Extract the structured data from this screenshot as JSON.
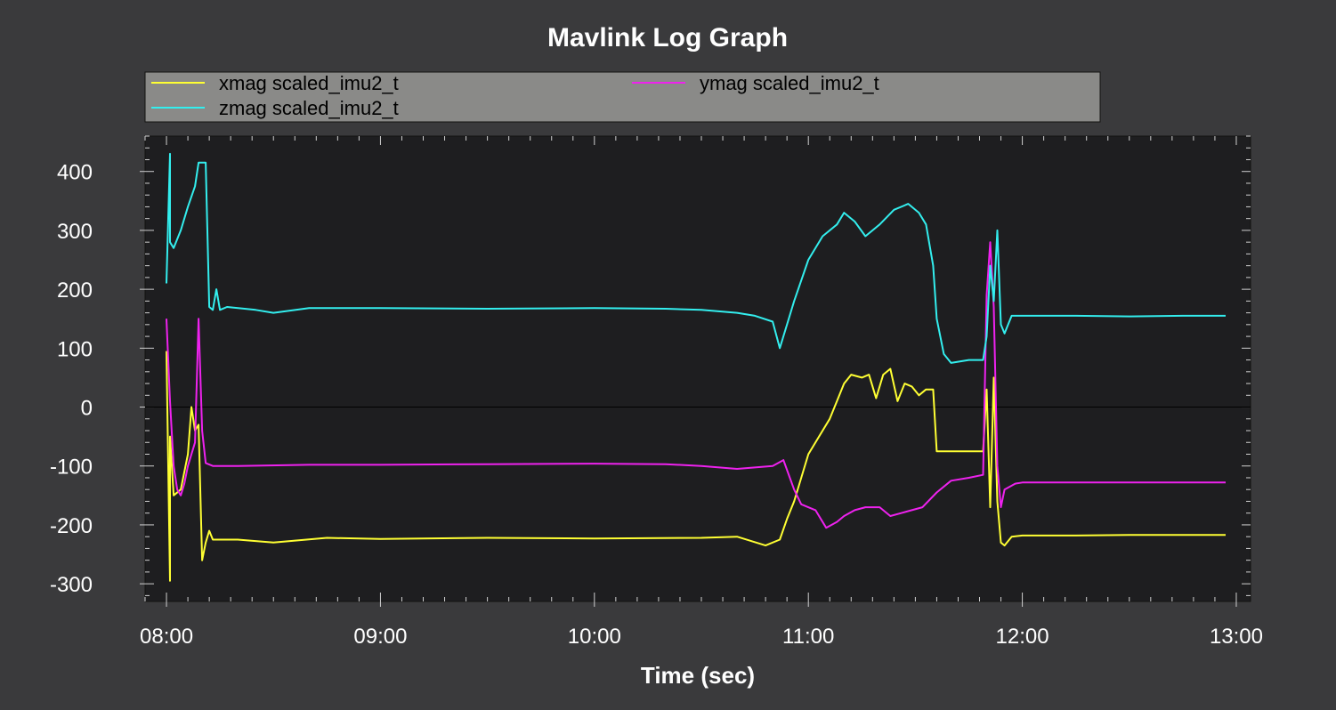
{
  "chart_data": {
    "type": "line",
    "title": "Mavlink Log Graph",
    "xlabel": "Time (sec)",
    "ylabel": "",
    "xlim": [
      "07:54",
      "13:04"
    ],
    "ylim": [
      -330,
      460
    ],
    "x_ticks": [
      "08:00",
      "09:00",
      "10:00",
      "11:00",
      "12:00",
      "13:00"
    ],
    "y_ticks": [
      400,
      300,
      200,
      100,
      0,
      -100,
      -200,
      -300
    ],
    "grid": false,
    "zero_line": true,
    "legend": "top",
    "background_color": "#3a3a3c",
    "plot_background": "#1e1e20",
    "legend_background": "#8a8a88",
    "series": [
      {
        "name": "xmag scaled_imu2_t",
        "color": "#ffff33",
        "points": [
          [
            "08:00",
            95
          ],
          [
            "08:01",
            -295
          ],
          [
            "08:01",
            -50
          ],
          [
            "08:02",
            -150
          ],
          [
            "08:04",
            -140
          ],
          [
            "08:05",
            -110
          ],
          [
            "08:06",
            -80
          ],
          [
            "08:07",
            0
          ],
          [
            "08:08",
            -40
          ],
          [
            "08:09",
            -30
          ],
          [
            "08:10",
            -260
          ],
          [
            "08:11",
            -230
          ],
          [
            "08:12",
            -210
          ],
          [
            "08:13",
            -225
          ],
          [
            "08:20",
            -225
          ],
          [
            "08:30",
            -230
          ],
          [
            "08:45",
            -222
          ],
          [
            "09:00",
            -224
          ],
          [
            "09:30",
            -222
          ],
          [
            "10:00",
            -223
          ],
          [
            "10:30",
            -222
          ],
          [
            "10:40",
            -220
          ],
          [
            "10:48",
            -235
          ],
          [
            "10:52",
            -225
          ],
          [
            "10:54",
            -190
          ],
          [
            "10:56",
            -160
          ],
          [
            "11:00",
            -80
          ],
          [
            "11:03",
            -50
          ],
          [
            "11:06",
            -20
          ],
          [
            "11:08",
            10
          ],
          [
            "11:10",
            40
          ],
          [
            "11:12",
            55
          ],
          [
            "11:15",
            50
          ],
          [
            "11:17",
            55
          ],
          [
            "11:19",
            15
          ],
          [
            "11:21",
            55
          ],
          [
            "11:23",
            65
          ],
          [
            "11:25",
            10
          ],
          [
            "11:27",
            40
          ],
          [
            "11:29",
            35
          ],
          [
            "11:31",
            20
          ],
          [
            "11:33",
            30
          ],
          [
            "11:35",
            30
          ],
          [
            "11:36",
            -75
          ],
          [
            "11:45",
            -75
          ],
          [
            "11:49",
            -75
          ],
          [
            "11:50",
            30
          ],
          [
            "11:51",
            -170
          ],
          [
            "11:52",
            50
          ],
          [
            "11:53",
            -160
          ],
          [
            "11:54",
            -230
          ],
          [
            "11:55",
            -235
          ],
          [
            "11:57",
            -220
          ],
          [
            "12:00",
            -218
          ],
          [
            "12:15",
            -218
          ],
          [
            "12:30",
            -217
          ],
          [
            "12:45",
            -217
          ],
          [
            "12:57",
            -217
          ]
        ]
      },
      {
        "name": "ymag scaled_imu2_t",
        "color": "#ee22ee",
        "points": [
          [
            "08:00",
            150
          ],
          [
            "08:01",
            10
          ],
          [
            "08:02",
            -100
          ],
          [
            "08:03",
            -140
          ],
          [
            "08:04",
            -150
          ],
          [
            "08:05",
            -130
          ],
          [
            "08:06",
            -100
          ],
          [
            "08:07",
            -80
          ],
          [
            "08:08",
            -60
          ],
          [
            "08:09",
            150
          ],
          [
            "08:10",
            -40
          ],
          [
            "08:11",
            -95
          ],
          [
            "08:13",
            -100
          ],
          [
            "08:20",
            -100
          ],
          [
            "08:40",
            -98
          ],
          [
            "09:00",
            -98
          ],
          [
            "09:30",
            -97
          ],
          [
            "10:00",
            -96
          ],
          [
            "10:20",
            -97
          ],
          [
            "10:30",
            -100
          ],
          [
            "10:40",
            -105
          ],
          [
            "10:50",
            -100
          ],
          [
            "10:53",
            -90
          ],
          [
            "10:56",
            -140
          ],
          [
            "10:58",
            -165
          ],
          [
            "11:02",
            -175
          ],
          [
            "11:05",
            -205
          ],
          [
            "11:08",
            -195
          ],
          [
            "11:10",
            -185
          ],
          [
            "11:13",
            -175
          ],
          [
            "11:16",
            -170
          ],
          [
            "11:20",
            -170
          ],
          [
            "11:23",
            -185
          ],
          [
            "11:26",
            -180
          ],
          [
            "11:29",
            -175
          ],
          [
            "11:32",
            -170
          ],
          [
            "11:36",
            -145
          ],
          [
            "11:40",
            -125
          ],
          [
            "11:45",
            -120
          ],
          [
            "11:49",
            -115
          ],
          [
            "11:50",
            190
          ],
          [
            "11:51",
            280
          ],
          [
            "11:52",
            170
          ],
          [
            "11:53",
            -100
          ],
          [
            "11:54",
            -170
          ],
          [
            "11:55",
            -140
          ],
          [
            "11:58",
            -130
          ],
          [
            "12:00",
            -128
          ],
          [
            "12:30",
            -128
          ],
          [
            "12:57",
            -128
          ]
        ]
      },
      {
        "name": "zmag scaled_imu2_t",
        "color": "#33eeee",
        "points": [
          [
            "08:00",
            210
          ],
          [
            "08:01",
            430
          ],
          [
            "08:01",
            280
          ],
          [
            "08:02",
            270
          ],
          [
            "08:04",
            300
          ],
          [
            "08:06",
            340
          ],
          [
            "08:08",
            375
          ],
          [
            "08:09",
            415
          ],
          [
            "08:11",
            415
          ],
          [
            "08:12",
            170
          ],
          [
            "08:13",
            165
          ],
          [
            "08:14",
            200
          ],
          [
            "08:15",
            165
          ],
          [
            "08:17",
            170
          ],
          [
            "08:25",
            165
          ],
          [
            "08:30",
            160
          ],
          [
            "08:40",
            168
          ],
          [
            "09:00",
            168
          ],
          [
            "09:30",
            167
          ],
          [
            "10:00",
            168
          ],
          [
            "10:20",
            167
          ],
          [
            "10:30",
            165
          ],
          [
            "10:40",
            160
          ],
          [
            "10:45",
            155
          ],
          [
            "10:50",
            145
          ],
          [
            "10:52",
            100
          ],
          [
            "10:54",
            140
          ],
          [
            "10:56",
            180
          ],
          [
            "11:00",
            250
          ],
          [
            "11:04",
            290
          ],
          [
            "11:08",
            310
          ],
          [
            "11:10",
            330
          ],
          [
            "11:13",
            315
          ],
          [
            "11:16",
            290
          ],
          [
            "11:20",
            310
          ],
          [
            "11:24",
            335
          ],
          [
            "11:28",
            345
          ],
          [
            "11:31",
            330
          ],
          [
            "11:33",
            310
          ],
          [
            "11:35",
            240
          ],
          [
            "11:36",
            150
          ],
          [
            "11:38",
            90
          ],
          [
            "11:40",
            75
          ],
          [
            "11:45",
            80
          ],
          [
            "11:49",
            80
          ],
          [
            "11:50",
            120
          ],
          [
            "11:51",
            240
          ],
          [
            "11:52",
            180
          ],
          [
            "11:53",
            300
          ],
          [
            "11:54",
            140
          ],
          [
            "11:55",
            125
          ],
          [
            "11:57",
            155
          ],
          [
            "12:00",
            155
          ],
          [
            "12:15",
            155
          ],
          [
            "12:30",
            154
          ],
          [
            "12:45",
            155
          ],
          [
            "12:57",
            155
          ]
        ]
      }
    ]
  }
}
